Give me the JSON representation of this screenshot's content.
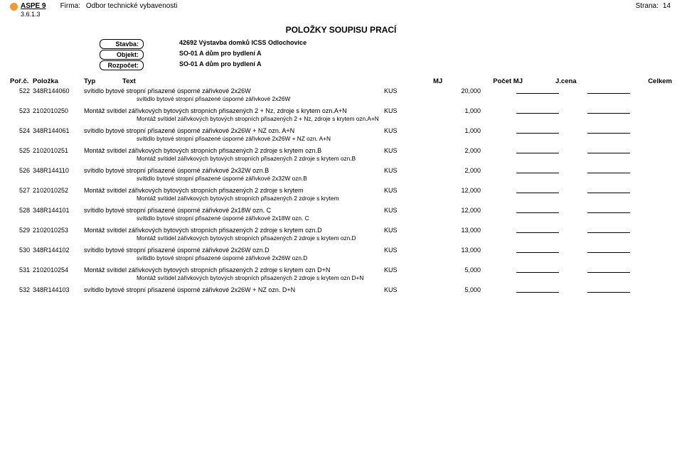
{
  "header": {
    "app_name": "ASPE 9",
    "version": "3.6.1.3",
    "firma_label": "Firma:",
    "firma_value": "Odbor technické vybavenosti",
    "strana_label": "Strana:",
    "strana_value": "14"
  },
  "title": "POLOŽKY SOUPISU PRACÍ",
  "meta": {
    "stavba_label": "Stavba:",
    "stavba_value": "42692  Výstavba domků ICSS Odlochovice",
    "objekt_label": "Objekt:",
    "objekt_value": "SO-01  A dům pro bydlení A",
    "rozpocet_label": "Rozpočet:",
    "rozpocet_value": "SO-01  A dům pro bydlení A"
  },
  "columns": {
    "porc": "Poř.č.",
    "polozka": "Položka",
    "typ": "Typ",
    "text": "Text",
    "mj": "MJ",
    "pocet_mj": "Počet MJ",
    "jcena": "J.cena",
    "celkem": "Celkem"
  },
  "rows": [
    {
      "n": "522",
      "code": "348R144060",
      "text": "svítidlo bytové stropní přisazené úsporné zářivkové 2x26W",
      "mj": "KUS",
      "qty": "20,000",
      "sub": "svítidlo bytové stropní přisazené úsporné zářivkové 2x26W"
    },
    {
      "n": "523",
      "code": "2102010250",
      "text": "Montáž svítidel zářivkových bytových stropních přisazených 2 + Nz, zdroje s krytem ozn.A+N",
      "mj": "KUS",
      "qty": "1,000",
      "sub": "Montáž svítidel zářivkových bytových stropních přisazených 2 + Nz, zdroje s krytem ozn.A+N"
    },
    {
      "n": "524",
      "code": "348R144061",
      "text": "svítidlo bytové stropní přisazené úsporné zářivkové 2x26W + NZ ozn. A+N",
      "mj": "KUS",
      "qty": "1,000",
      "sub": "svítidlo bytové stropní přisazené úsporné zářivkové 2x26W + NZ ozn. A+N"
    },
    {
      "n": "525",
      "code": "2102010251",
      "text": "Montáž svítidel zářivkových bytových stropních přisazených 2 zdroje s krytem ozn.B",
      "mj": "KUS",
      "qty": "2,000",
      "sub": "Montáž svítidel zářivkových bytových stropních přisazených 2 zdroje s krytem ozn.B"
    },
    {
      "n": "526",
      "code": "348R144110",
      "text": "svítidlo bytové stropní přisazené úsporné zářivkové 2x32W ozn.B",
      "mj": "KUS",
      "qty": "2,000",
      "sub": "svítidlo bytové stropní přisazené úsporné zářivkové 2x32W ozn.B"
    },
    {
      "n": "527",
      "code": "2102010252",
      "text": "Montáž svítidel zářivkových bytových stropních přisazených 2 zdroje s krytem",
      "mj": "KUS",
      "qty": "12,000",
      "sub": "Montáž svítidel zářivkových bytových stropních přisazených 2 zdroje s krytem"
    },
    {
      "n": "528",
      "code": "348R144101",
      "text": "svítidlo bytové stropní přisazené úsporné zářivkové 2x18W ozn. C",
      "mj": "KUS",
      "qty": "12,000",
      "sub": "svítidlo bytové stropní přisazené úsporné zářivkové 2x18W ozn. C"
    },
    {
      "n": "529",
      "code": "2102010253",
      "text": "Montáž svítidel zářivkových bytových stropních přisazených 2 zdroje s krytem ozn.D",
      "mj": "KUS",
      "qty": "13,000",
      "sub": "Montáž svítidel zářivkových bytových stropních přisazených 2 zdroje s krytem ozn.D"
    },
    {
      "n": "530",
      "code": "348R144102",
      "text": "svítidlo bytové stropní přisazené úsporné zářivkové 2x26W ozn.D",
      "mj": "KUS",
      "qty": "13,000",
      "sub": "svítidlo bytové stropní přisazené úsporné zářivkové 2x26W ozn.D"
    },
    {
      "n": "531",
      "code": "2102010254",
      "text": "Montáž svítidel zářivkových bytových stropních přisazených 2 zdroje s krytem ozn D+N",
      "mj": "KUS",
      "qty": "5,000",
      "sub": "Montáž svítidel zářivkových bytových stropních přisazených 2 zdroje s krytem ozn D+N"
    },
    {
      "n": "532",
      "code": "348R144103",
      "text": "svítidlo bytové stropní přisazené úsporné zářivkové 2x26W + NZ ozn. D+N",
      "mj": "KUS",
      "qty": "5,000"
    }
  ],
  "colors": {
    "background": "#ffffff",
    "text": "#000000",
    "logo": "#f79433",
    "border": "#000000"
  }
}
